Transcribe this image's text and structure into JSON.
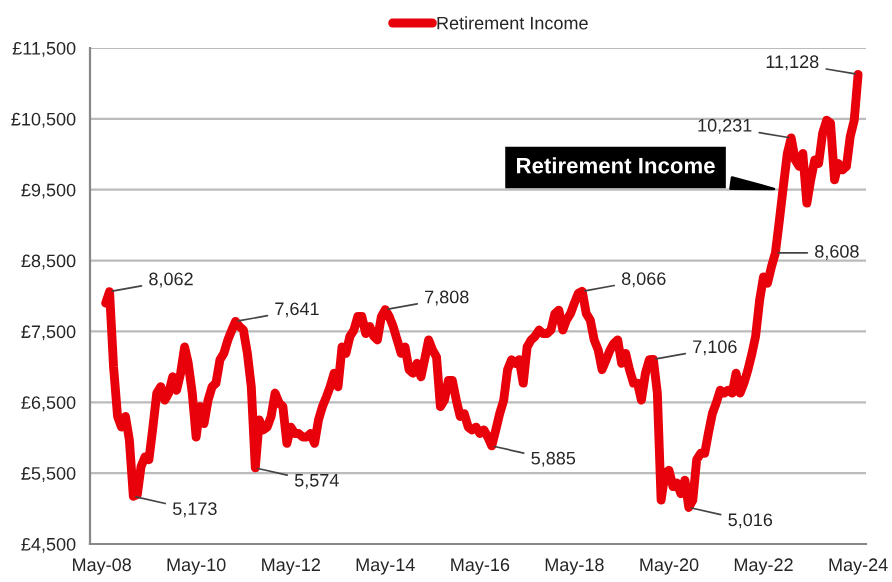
{
  "chart_data": {
    "type": "line",
    "x": [
      "2008-06",
      "2008-07",
      "2008-08",
      "2008-09",
      "2008-10",
      "2008-11",
      "2008-12",
      "2009-01",
      "2009-02",
      "2009-03",
      "2009-04",
      "2009-05",
      "2009-06",
      "2009-07",
      "2009-08",
      "2009-09",
      "2009-10",
      "2009-11",
      "2009-12",
      "2010-01",
      "2010-02",
      "2010-03",
      "2010-04",
      "2010-05",
      "2010-06",
      "2010-07",
      "2010-08",
      "2010-09",
      "2010-10",
      "2010-11",
      "2010-12",
      "2011-01",
      "2011-02",
      "2011-03",
      "2011-04",
      "2011-05",
      "2011-06",
      "2011-07",
      "2011-08",
      "2011-09",
      "2011-10",
      "2011-11",
      "2011-12",
      "2012-01",
      "2012-02",
      "2012-03",
      "2012-04",
      "2012-05",
      "2012-06",
      "2012-07",
      "2012-08",
      "2012-09",
      "2012-10",
      "2012-11",
      "2012-12",
      "2013-01",
      "2013-02",
      "2013-03",
      "2013-04",
      "2013-05",
      "2013-06",
      "2013-07",
      "2013-08",
      "2013-09",
      "2013-10",
      "2013-11",
      "2013-12",
      "2014-01",
      "2014-02",
      "2014-03",
      "2014-04",
      "2014-05",
      "2014-06",
      "2014-07",
      "2014-08",
      "2014-09",
      "2014-10",
      "2014-11",
      "2014-12",
      "2015-01",
      "2015-02",
      "2015-03",
      "2015-04",
      "2015-05",
      "2015-06",
      "2015-07",
      "2015-08",
      "2015-09",
      "2015-10",
      "2015-11",
      "2015-12",
      "2016-01",
      "2016-02",
      "2016-03",
      "2016-04",
      "2016-05",
      "2016-06",
      "2016-07",
      "2016-08",
      "2016-09",
      "2016-10",
      "2016-11",
      "2016-12",
      "2017-01",
      "2017-02",
      "2017-03",
      "2017-04",
      "2017-05",
      "2017-06",
      "2017-07",
      "2017-08",
      "2017-09",
      "2017-10",
      "2017-11",
      "2017-12",
      "2018-01",
      "2018-02",
      "2018-03",
      "2018-04",
      "2018-05",
      "2018-06",
      "2018-07",
      "2018-08",
      "2018-09",
      "2018-10",
      "2018-11",
      "2018-12",
      "2019-01",
      "2019-02",
      "2019-03",
      "2019-04",
      "2019-05",
      "2019-06",
      "2019-07",
      "2019-08",
      "2019-09",
      "2019-10",
      "2019-11",
      "2019-12",
      "2020-01",
      "2020-02",
      "2020-03",
      "2020-04",
      "2020-05",
      "2020-06",
      "2020-07",
      "2020-08",
      "2020-09",
      "2020-10",
      "2020-11",
      "2020-12",
      "2021-01",
      "2021-02",
      "2021-03",
      "2021-04",
      "2021-05",
      "2021-06",
      "2021-07",
      "2021-08",
      "2021-09",
      "2021-10",
      "2021-11",
      "2021-12",
      "2022-01",
      "2022-02",
      "2022-03",
      "2022-04",
      "2022-05",
      "2022-06",
      "2022-07",
      "2022-08",
      "2022-09",
      "2022-10",
      "2022-11",
      "2022-12",
      "2023-01",
      "2023-02",
      "2023-03",
      "2023-04",
      "2023-05",
      "2023-06",
      "2023-07",
      "2023-08",
      "2023-09",
      "2023-10",
      "2023-11",
      "2023-12",
      "2024-01",
      "2024-02",
      "2024-03",
      "2024-04",
      "2024-05"
    ],
    "series": [
      {
        "name": "Retirement Income",
        "color": "#e8000b",
        "values": [
          7900,
          8062,
          7000,
          6300,
          6150,
          6300,
          5970,
          5173,
          5200,
          5590,
          5730,
          5690,
          6150,
          6630,
          6720,
          6530,
          6630,
          6860,
          6670,
          6910,
          7280,
          7050,
          6630,
          6010,
          6440,
          6200,
          6530,
          6720,
          6770,
          7100,
          7190,
          7380,
          7520,
          7641,
          7570,
          7520,
          7190,
          6720,
          5574,
          6250,
          6110,
          6150,
          6300,
          6630,
          6490,
          6440,
          5920,
          6150,
          6060,
          6060,
          6010,
          6010,
          6060,
          5920,
          6250,
          6440,
          6580,
          6720,
          6910,
          6720,
          7280,
          7190,
          7430,
          7520,
          7710,
          7710,
          7470,
          7570,
          7430,
          7380,
          7710,
          7808,
          7710,
          7570,
          7380,
          7190,
          7280,
          6960,
          6910,
          7050,
          6860,
          7100,
          7380,
          7240,
          7140,
          6440,
          6530,
          6810,
          6810,
          6530,
          6300,
          6340,
          6150,
          6110,
          6150,
          6060,
          6110,
          6010,
          5885,
          6110,
          6340,
          6530,
          6960,
          7100,
          7050,
          7100,
          6770,
          7280,
          7380,
          7430,
          7520,
          7470,
          7470,
          7520,
          7750,
          7800,
          7520,
          7660,
          7750,
          7900,
          8040,
          8066,
          7750,
          7660,
          7380,
          7240,
          6960,
          7100,
          7240,
          7330,
          7380,
          7050,
          7190,
          6960,
          6770,
          6770,
          6530,
          6910,
          7100,
          7106,
          6630,
          5120,
          5500,
          5540,
          5310,
          5360,
          5210,
          5400,
          5016,
          5120,
          5690,
          5780,
          5780,
          6060,
          6340,
          6490,
          6670,
          6630,
          6670,
          6630,
          6910,
          6630,
          6770,
          6960,
          7190,
          7430,
          7940,
          8270,
          8180,
          8410,
          8608,
          9070,
          9540,
          10010,
          10231,
          9920,
          9830,
          10010,
          9310,
          9640,
          9920,
          9870,
          10300,
          10480,
          10440,
          9640,
          9870,
          9780,
          9830,
          10250,
          10480,
          11128
        ]
      }
    ],
    "xlim": [
      "2008-02",
      "2024-07"
    ],
    "xticks": [
      {
        "value": "2008-05",
        "label": "May-08"
      },
      {
        "value": "2010-05",
        "label": "May-10"
      },
      {
        "value": "2012-05",
        "label": "May-12"
      },
      {
        "value": "2014-05",
        "label": "May-14"
      },
      {
        "value": "2016-05",
        "label": "May-16"
      },
      {
        "value": "2018-05",
        "label": "May-18"
      },
      {
        "value": "2020-05",
        "label": "May-20"
      },
      {
        "value": "2022-05",
        "label": "May-22"
      },
      {
        "value": "2024-05",
        "label": "May-24"
      }
    ],
    "ylim": [
      4500,
      11500
    ],
    "yticks": [
      {
        "value": 4500,
        "label": "£4,500"
      },
      {
        "value": 5500,
        "label": "£5,500"
      },
      {
        "value": 6500,
        "label": "£6,500"
      },
      {
        "value": 7500,
        "label": "£7,500"
      },
      {
        "value": 8500,
        "label": "£8,500"
      },
      {
        "value": 9500,
        "label": "£9,500"
      },
      {
        "value": 10500,
        "label": "£10,500"
      },
      {
        "value": 11500,
        "label": "£11,500"
      }
    ],
    "annotations": [
      {
        "text": "8,062",
        "x": "2008-07",
        "y": 8062
      },
      {
        "text": "5,173",
        "x": "2009-01",
        "y": 5173
      },
      {
        "text": "7,641",
        "x": "2011-03",
        "y": 7641
      },
      {
        "text": "5,574",
        "x": "2011-08",
        "y": 5574
      },
      {
        "text": "7,808",
        "x": "2014-05",
        "y": 7808
      },
      {
        "text": "5,885",
        "x": "2016-08",
        "y": 5885
      },
      {
        "text": "8,066",
        "x": "2018-07",
        "y": 8066
      },
      {
        "text": "7,106",
        "x": "2020-01",
        "y": 7106
      },
      {
        "text": "5,016",
        "x": "2020-10",
        "y": 5016
      },
      {
        "text": "8,608",
        "x": "2022-08",
        "y": 8608
      },
      {
        "text": "10,231",
        "x": "2022-12",
        "y": 10231
      },
      {
        "text": "11,128",
        "x": "2024-05",
        "y": 11128
      },
      {
        "text": "Retirement Income",
        "x": "2022-09",
        "y": 9500
      }
    ],
    "grid": "y",
    "legend": "top",
    "marker": "none",
    "line_style": "solid"
  }
}
